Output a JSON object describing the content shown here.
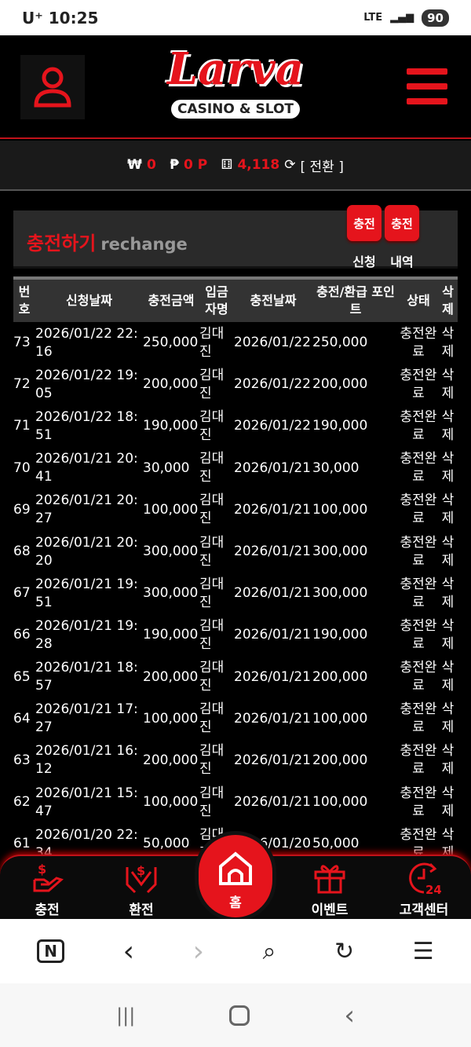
{
  "status_bar": {
    "carrier": "U⁺",
    "time": "10:25",
    "network": "LTE",
    "battery": "90"
  },
  "header": {
    "logo_text": "Larva",
    "logo_sub": "CASINO & SLOT",
    "user_icon": "user-icon",
    "menu_icon": "hamburger-icon"
  },
  "balance": {
    "won_symbol": "₩",
    "won": "0",
    "point_symbol": "₱",
    "points": "0 P",
    "chip_value": "4,118",
    "convert_label": "[ 전환 ]"
  },
  "panel": {
    "title": "충전하기",
    "subtitle": "rechange",
    "buttons": [
      {
        "label": "충전",
        "caption": "신청"
      },
      {
        "label": "충전",
        "caption": "내역"
      }
    ]
  },
  "table": {
    "headers": [
      "번호",
      "신청날짜",
      "충전금액",
      "입금자명",
      "충전날짜",
      "충전/환급 포인트",
      "상태",
      "삭제"
    ],
    "rows": [
      [
        "73",
        "2026/01/22 22:16",
        "250,000",
        "김대진",
        "2026/01/22",
        "250,000",
        "충전완료",
        "삭제"
      ],
      [
        "72",
        "2026/01/22 19:05",
        "200,000",
        "김대진",
        "2026/01/22",
        "200,000",
        "충전완료",
        "삭제"
      ],
      [
        "71",
        "2026/01/22 18:51",
        "190,000",
        "김대진",
        "2026/01/22",
        "190,000",
        "충전완료",
        "삭제"
      ],
      [
        "70",
        "2026/01/21 20:41",
        "30,000",
        "김대진",
        "2026/01/21",
        "30,000",
        "충전완료",
        "삭제"
      ],
      [
        "69",
        "2026/01/21 20:27",
        "100,000",
        "김대진",
        "2026/01/21",
        "100,000",
        "충전완료",
        "삭제"
      ],
      [
        "68",
        "2026/01/21 20:20",
        "300,000",
        "김대진",
        "2026/01/21",
        "300,000",
        "충전완료",
        "삭제"
      ],
      [
        "67",
        "2026/01/21 19:51",
        "300,000",
        "김대진",
        "2026/01/21",
        "300,000",
        "충전완료",
        "삭제"
      ],
      [
        "66",
        "2026/01/21 19:28",
        "190,000",
        "김대진",
        "2026/01/21",
        "190,000",
        "충전완료",
        "삭제"
      ],
      [
        "65",
        "2026/01/21 18:57",
        "200,000",
        "김대진",
        "2026/01/21",
        "200,000",
        "충전완료",
        "삭제"
      ],
      [
        "64",
        "2026/01/21 17:27",
        "100,000",
        "김대진",
        "2026/01/21",
        "100,000",
        "충전완료",
        "삭제"
      ],
      [
        "63",
        "2026/01/21 16:12",
        "200,000",
        "김대진",
        "2026/01/21",
        "200,000",
        "충전완료",
        "삭제"
      ],
      [
        "62",
        "2026/01/21 15:47",
        "100,000",
        "김대진",
        "2026/01/21",
        "100,000",
        "충전완료",
        "삭제"
      ],
      [
        "61",
        "2026/01/20 22:34",
        "50,000",
        "김대진",
        "2026/01/20",
        "50,000",
        "충전완료",
        "삭제"
      ]
    ]
  },
  "bottom_nav": [
    {
      "label": "충전",
      "icon": "hand-money-icon"
    },
    {
      "label": "환전",
      "icon": "hands-money-icon"
    },
    {
      "label": "홈",
      "icon": "home-icon"
    },
    {
      "label": "이벤트",
      "icon": "gift-icon"
    },
    {
      "label": "고객센터",
      "icon": "clock-24-icon"
    }
  ],
  "colors": {
    "accent": "#e5141c",
    "background": "#000000"
  }
}
